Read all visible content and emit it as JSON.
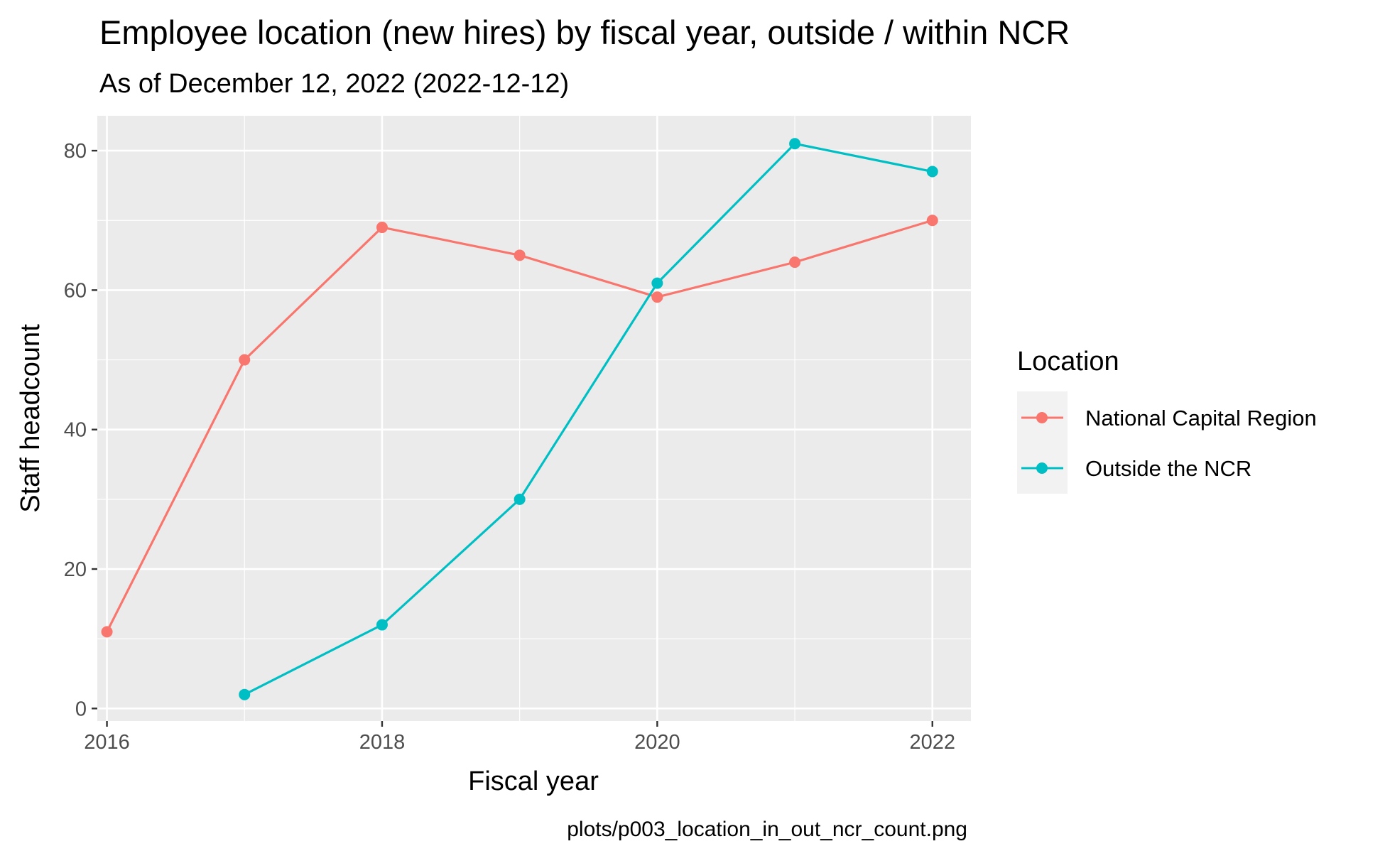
{
  "chart_data": {
    "type": "line",
    "title": "Employee location (new hires) by fiscal year, outside / within NCR",
    "subtitle": "As of December 12, 2022 (2022-12-12)",
    "xlabel": "Fiscal year",
    "ylabel": "Staff headcount",
    "caption": "plots/p003_location_in_out_ncr_count.png",
    "xlim": [
      2015.93,
      2022.28
    ],
    "ylim": [
      -1.8,
      85
    ],
    "x_ticks": [
      2016,
      2018,
      2020,
      2022
    ],
    "x_tick_labels": [
      "2016",
      "2018",
      "2020",
      "2022"
    ],
    "y_ticks": [
      0,
      20,
      40,
      60,
      80
    ],
    "y_tick_labels": [
      "0",
      "20",
      "40",
      "60",
      "80"
    ],
    "x_minor_ticks": [
      2017,
      2019,
      2021
    ],
    "y_minor_ticks": [
      10,
      30,
      50,
      70
    ],
    "grid": true,
    "legend": {
      "title": "Location",
      "position": "right"
    },
    "series": [
      {
        "name": "National Capital Region",
        "color": "#F8766D",
        "x": [
          2016,
          2017,
          2018,
          2019,
          2020,
          2021,
          2022
        ],
        "y": [
          11,
          50,
          69,
          65,
          59,
          64,
          70
        ]
      },
      {
        "name": "Outside the NCR",
        "color": "#00BFC4",
        "x": [
          2017,
          2018,
          2019,
          2020,
          2021,
          2022
        ],
        "y": [
          2,
          12,
          30,
          61,
          81,
          77
        ]
      }
    ]
  }
}
